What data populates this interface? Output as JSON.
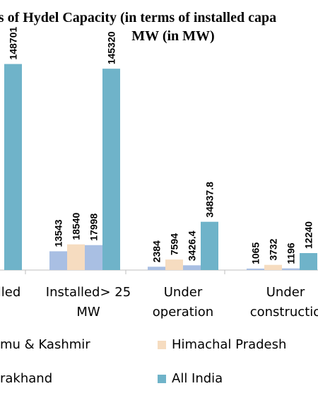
{
  "chart_data": {
    "type": "bar",
    "title_line_1": "tus of Hydel Capacity (in terms of installed capa",
    "title_line_2": "MW (in MW)",
    "categories": [
      "talled",
      "Installed> 25 MW",
      "Under operation",
      "Under construction"
    ],
    "category_labels": [
      [
        "talled"
      ],
      [
        "Installed> 25",
        "MW"
      ],
      [
        "Under",
        "operation"
      ],
      [
        "Under",
        "constructio"
      ]
    ],
    "series": [
      {
        "name": "Jammu & Kashmir",
        "legend_text": "mu & Kashmir",
        "color": "#a9bfe3",
        "values": [
          null,
          13543,
          2384,
          1065
        ]
      },
      {
        "name": "Himachal Pradesh",
        "legend_text": "Himachal Pradesh",
        "color": "#f6dcc0",
        "values": [
          null,
          18540,
          7594,
          3732
        ]
      },
      {
        "name": "Uttarakhand",
        "legend_text": "rakhand",
        "color": "#a9bfe3",
        "values": [
          null,
          17998,
          3426.4,
          1196
        ]
      },
      {
        "name": "All India",
        "legend_text": "All India",
        "color": "#6fb3c9",
        "values": [
          148701,
          145320,
          34837.8,
          12240
        ]
      }
    ],
    "value_labels": [
      [
        null,
        "13543",
        "2384",
        "1065"
      ],
      [
        null,
        "18540",
        "7594",
        "3732"
      ],
      [
        null,
        "17998",
        "3426.4",
        "1196"
      ],
      [
        "148701",
        "145320",
        "34837.8",
        "12240"
      ]
    ],
    "ylim": [
      0,
      150000
    ],
    "grid": false,
    "legend_position": "bottom"
  }
}
